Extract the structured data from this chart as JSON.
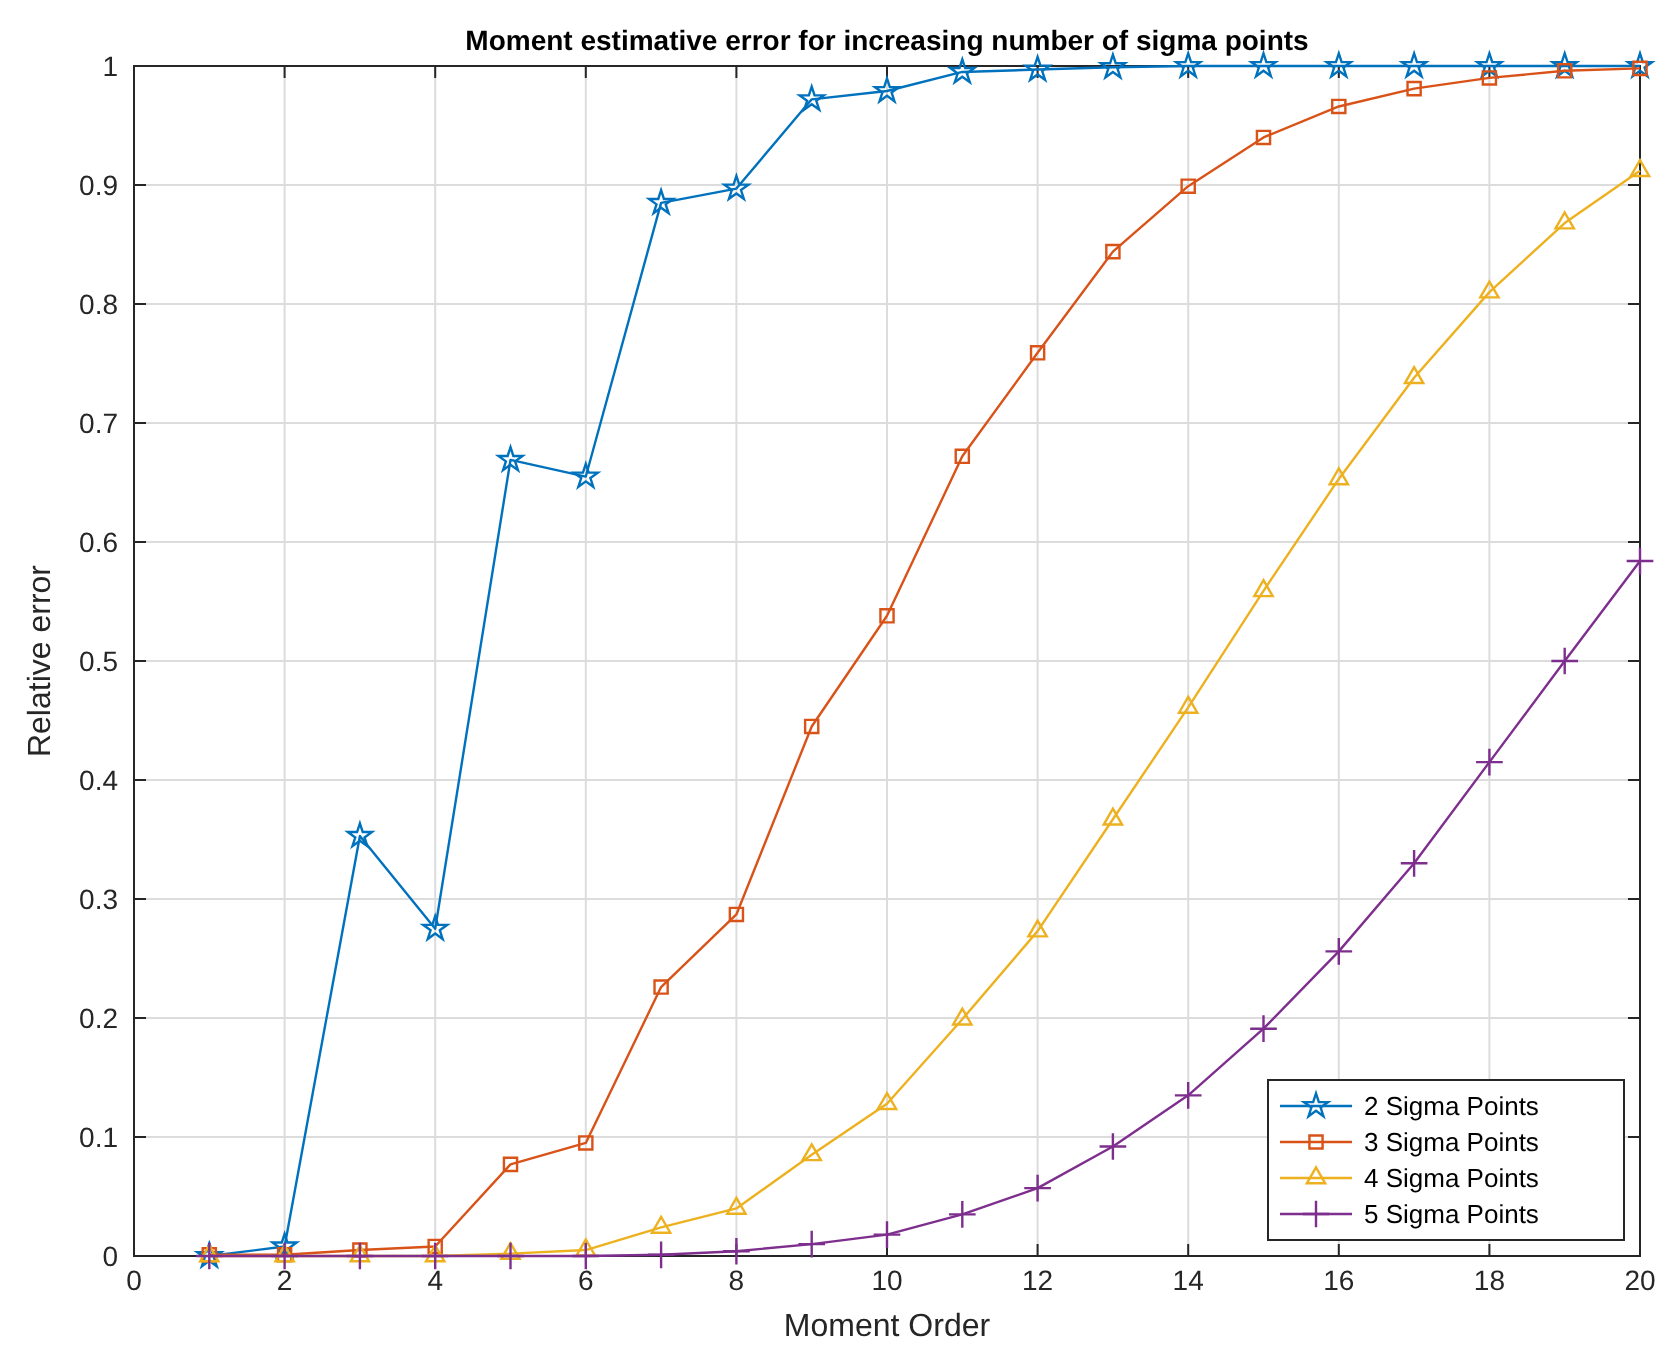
{
  "chart_data": {
    "type": "line",
    "title": "Moment estimative error for increasing number of sigma points",
    "xlabel": "Moment Order",
    "ylabel": "Relative error",
    "x": [
      1,
      2,
      3,
      4,
      5,
      6,
      7,
      8,
      9,
      10,
      11,
      12,
      13,
      14,
      15,
      16,
      17,
      18,
      19,
      20
    ],
    "xlim": [
      0,
      20
    ],
    "xticks": [
      0,
      2,
      4,
      6,
      8,
      10,
      12,
      14,
      16,
      18,
      20
    ],
    "ylim": [
      0,
      1
    ],
    "yticks": [
      0,
      0.1,
      0.2,
      0.3,
      0.4,
      0.5,
      0.6,
      0.7,
      0.8,
      0.9,
      1
    ],
    "grid": true,
    "legend": "bottom right",
    "line_style": "solid",
    "series": [
      {
        "name": "2 Sigma Points",
        "color": "#0072bd",
        "marker": "star",
        "values": [
          0,
          0.008,
          0.353,
          0.275,
          0.669,
          0.655,
          0.885,
          0.897,
          0.972,
          0.979,
          0.995,
          0.997,
          0.999,
          1,
          1,
          1,
          1,
          1,
          1,
          1
        ]
      },
      {
        "name": "3 Sigma Points",
        "color": "#d95319",
        "marker": "square",
        "values": [
          0.001,
          0.001,
          0.005,
          0.008,
          0.077,
          0.095,
          0.226,
          0.287,
          0.445,
          0.538,
          0.672,
          0.759,
          0.844,
          0.899,
          0.94,
          0.966,
          0.981,
          0.99,
          0.996,
          0.998
        ]
      },
      {
        "name": "4 Sigma Points",
        "color": "#edb120",
        "marker": "triangle",
        "values": [
          0,
          0,
          0,
          0,
          0.002,
          0.005,
          0.024,
          0.04,
          0.085,
          0.128,
          0.199,
          0.273,
          0.367,
          0.461,
          0.559,
          0.653,
          0.738,
          0.81,
          0.868,
          0.912
        ]
      },
      {
        "name": "5 Sigma Points",
        "color": "#7e2f8e",
        "marker": "cross",
        "values": [
          0,
          0,
          0,
          0,
          0,
          0,
          0.001,
          0.004,
          0.01,
          0.018,
          0.035,
          0.057,
          0.092,
          0.135,
          0.191,
          0.256,
          0.33,
          0.415,
          0.5,
          0.584
        ]
      }
    ]
  }
}
